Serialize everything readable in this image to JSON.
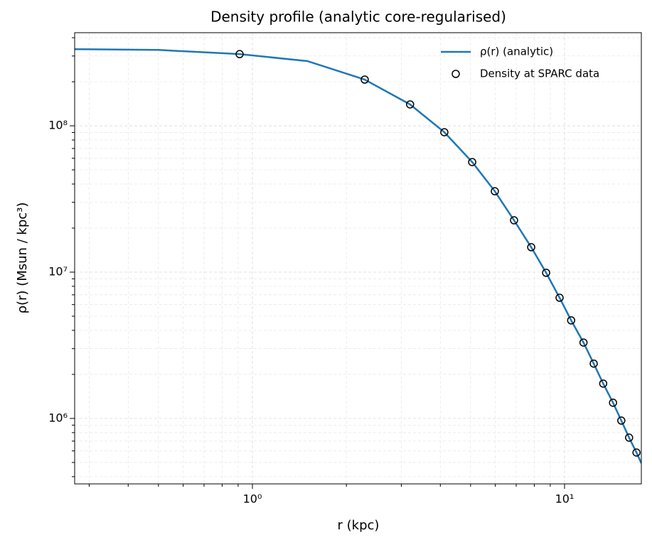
{
  "chart_data": {
    "type": "line",
    "title": "Density profile (analytic core-regularised)",
    "x_label": "r (kpc)",
    "y_label": "ρ(r) (Msun / kpc³)",
    "x_log": true,
    "y_log": true,
    "grid": true,
    "legend": "upper right",
    "xlim": [
      0.2695,
      17.62
    ],
    "ylim": [
      357000,
      433000000
    ],
    "xticks": [
      {
        "value": 1,
        "label": "10⁰"
      },
      {
        "value": 10,
        "label": "10¹"
      }
    ],
    "yticks": [
      {
        "value": 1000000,
        "label": "10⁶"
      },
      {
        "value": 10000000,
        "label": "10⁷"
      },
      {
        "value": 100000000,
        "label": "10⁸"
      }
    ],
    "xminor": [
      0.3,
      0.4,
      0.5,
      0.6,
      0.7,
      0.8,
      0.9,
      2,
      3,
      4,
      5,
      6,
      7,
      8,
      9
    ],
    "yminor": [
      400000,
      500000,
      600000,
      700000,
      800000,
      900000,
      2000000,
      3000000,
      4000000,
      5000000,
      6000000,
      7000000,
      8000000,
      9000000,
      20000000,
      30000000,
      40000000,
      50000000,
      60000000,
      70000000,
      80000000,
      90000000,
      200000000,
      300000000,
      400000000
    ],
    "series": [
      {
        "name": "ρ(r) (analytic)",
        "type": "line",
        "color": "#1f77b4",
        "x": [
          0.2695,
          0.5,
          0.91,
          1.5,
          2.29,
          3.2,
          4.12,
          5.06,
          5.98,
          6.89,
          7.82,
          8.73,
          9.64,
          10.5,
          11.5,
          12.4,
          13.3,
          14.3,
          15.2,
          16.1,
          17.0,
          17.62
        ],
        "values": [
          334000000,
          330000000,
          309000000,
          277000000,
          207000000,
          140000000,
          90400000,
          56500000,
          35700000,
          22600000,
          14800000,
          9900000,
          6680000,
          4680000,
          3300000,
          2370000,
          1730000,
          1280000,
          967000,
          739000,
          585000,
          494000
        ]
      },
      {
        "name": "Density at SPARC data",
        "type": "scatter",
        "color": "#000000",
        "x": [
          0.91,
          2.29,
          3.2,
          4.12,
          5.06,
          5.98,
          6.89,
          7.82,
          8.73,
          9.64,
          10.5,
          11.5,
          12.4,
          13.3,
          14.3,
          15.2,
          16.1,
          17.0
        ],
        "values": [
          309000000,
          207000000,
          140000000,
          90400000,
          56500000,
          35700000,
          22600000,
          14800000,
          9900000,
          6680000,
          4680000,
          3300000,
          2370000,
          1730000,
          1280000,
          967000,
          739000,
          585000
        ]
      }
    ]
  }
}
